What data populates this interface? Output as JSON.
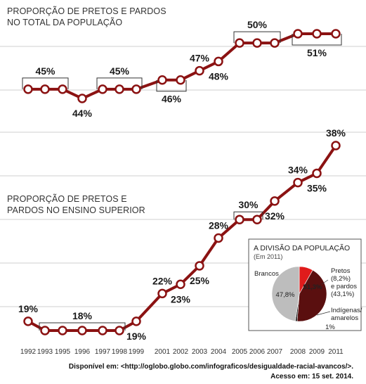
{
  "chart_data": [
    {
      "type": "line",
      "title": "PROPORÇÃO DE PRETOS E PARDOS\nNO TOTAL DA POPULAÇÃO",
      "x": [
        "1992",
        "1993",
        "1995",
        "1996",
        "1997",
        "1998",
        "1999",
        "2001",
        "2002",
        "2003",
        "2004",
        "2005",
        "2006",
        "2007",
        "2008",
        "2009",
        "2011"
      ],
      "values": [
        45,
        45,
        45,
        44,
        45,
        45,
        45,
        46,
        46,
        47,
        48,
        50,
        50,
        50,
        51,
        51,
        51
      ],
      "labels": [
        {
          "text": "45%",
          "from": 0,
          "to": 2,
          "pos": "above"
        },
        {
          "text": "44%",
          "from": 3,
          "to": 3,
          "pos": "below"
        },
        {
          "text": "45%",
          "from": 4,
          "to": 6,
          "pos": "above"
        },
        {
          "text": "46%",
          "from": 7,
          "to": 8,
          "pos": "below"
        },
        {
          "text": "47%",
          "from": 9,
          "to": 9,
          "pos": "above"
        },
        {
          "text": "48%",
          "from": 10,
          "to": 10,
          "pos": "below"
        },
        {
          "text": "50%",
          "from": 11,
          "to": 13,
          "pos": "above"
        },
        {
          "text": "51%",
          "from": 14,
          "to": 16,
          "pos": "below"
        }
      ]
    },
    {
      "type": "line",
      "title": "PROPORÇÃO DE PRETOS E\nPARDOS NO ENSINO SUPERIOR",
      "x": [
        "1992",
        "1993",
        "1995",
        "1996",
        "1997",
        "1998",
        "1999",
        "2001",
        "2002",
        "2003",
        "2004",
        "2005",
        "2006",
        "2007",
        "2008",
        "2009",
        "2011"
      ],
      "values": [
        19,
        18,
        18,
        18,
        18,
        18,
        19,
        22,
        23,
        25,
        28,
        30,
        30,
        32,
        34,
        35,
        38
      ],
      "labels": [
        {
          "text": "19%",
          "from": 0,
          "to": 0,
          "pos": "above"
        },
        {
          "text": "18%",
          "from": 1,
          "to": 5,
          "pos": "above"
        },
        {
          "text": "19%",
          "from": 6,
          "to": 6,
          "pos": "below"
        },
        {
          "text": "22%",
          "from": 7,
          "to": 7,
          "pos": "above"
        },
        {
          "text": "23%",
          "from": 8,
          "to": 8,
          "pos": "below"
        },
        {
          "text": "25%",
          "from": 9,
          "to": 9,
          "pos": "below"
        },
        {
          "text": "28%",
          "from": 10,
          "to": 10,
          "pos": "above"
        },
        {
          "text": "30%",
          "from": 11,
          "to": 12,
          "pos": "above"
        },
        {
          "text": "32%",
          "from": 13,
          "to": 13,
          "pos": "below"
        },
        {
          "text": "34%",
          "from": 14,
          "to": 14,
          "pos": "above"
        },
        {
          "text": "35%",
          "from": 15,
          "to": 15,
          "pos": "below"
        },
        {
          "text": "38%",
          "from": 16,
          "to": 16,
          "pos": "above"
        }
      ]
    },
    {
      "type": "pie",
      "title": "A DIVISÃO DA POPULAÇÃO",
      "subtitle": "(Em 2011)",
      "slices": [
        {
          "label": "Brancos",
          "value": 47.8,
          "text": "47,8%",
          "color": "#bdbdbd"
        },
        {
          "label": "Pretos\n(8,2%)\ne pardos\n(43,1%)",
          "value": 51.3,
          "text": "51,3%",
          "color": "#5a0f0f",
          "segments": [
            {
              "label": "Pretos",
              "value": 8.2,
              "color": "#e01b1b"
            },
            {
              "label": "pardos",
              "value": 43.1,
              "color": "#5a0f0f"
            }
          ]
        },
        {
          "label": "Indígenas/\namarelos",
          "value": 1,
          "text": "1%",
          "color": "#111111"
        }
      ]
    }
  ],
  "colors": {
    "line": "#8b1212",
    "marker_fill": "#ffffff",
    "grid": "#cfcfcf"
  },
  "source": {
    "line1": "Disponível em: <http://oglobo.globo.com/infograficos/desigualdade-racial-avancos/>.",
    "line2": "Acesso em: 15 set. 2014."
  }
}
